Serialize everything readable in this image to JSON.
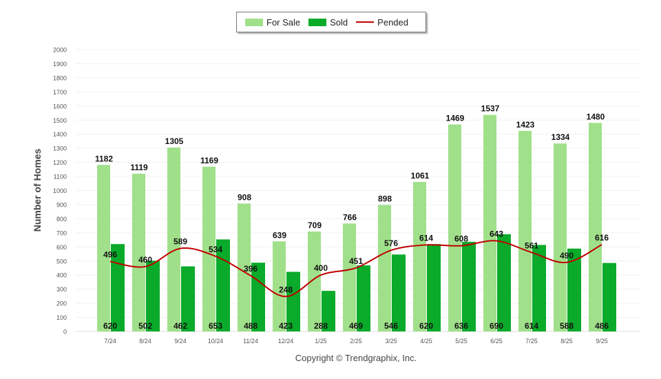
{
  "chart_data": {
    "type": "bar",
    "title": "",
    "xlabel": "",
    "ylabel": "Number of Homes",
    "ylim": [
      0,
      2000
    ],
    "yticks": [
      0,
      100,
      200,
      300,
      400,
      500,
      600,
      700,
      800,
      900,
      1000,
      1100,
      1200,
      1300,
      1400,
      1500,
      1600,
      1700,
      1800,
      1900,
      2000
    ],
    "grid": true,
    "legend_position": "top-center",
    "categories": [
      "7/24",
      "8/24",
      "9/24",
      "10/24",
      "11/24",
      "12/24",
      "1/25",
      "2/25",
      "3/25",
      "4/25",
      "5/25",
      "6/25",
      "7/25",
      "8/25",
      "9/25"
    ],
    "series": [
      {
        "name": "For Sale",
        "kind": "bar",
        "color": "#a0e08a",
        "values": [
          1182,
          1119,
          1305,
          1169,
          908,
          639,
          709,
          766,
          898,
          1061,
          1469,
          1537,
          1423,
          1334,
          1480
        ]
      },
      {
        "name": "Sold",
        "kind": "bar",
        "color": "#0aaa2a",
        "values": [
          620,
          502,
          462,
          653,
          488,
          423,
          288,
          469,
          546,
          620,
          636,
          690,
          614,
          588,
          486
        ]
      },
      {
        "name": "Pended",
        "kind": "line",
        "color": "#c00000",
        "values": [
          496,
          460,
          589,
          534,
          396,
          248,
          400,
          451,
          576,
          614,
          608,
          643,
          561,
          490,
          616
        ]
      }
    ]
  },
  "copyright": "Copyright © Trendgraphix, Inc."
}
